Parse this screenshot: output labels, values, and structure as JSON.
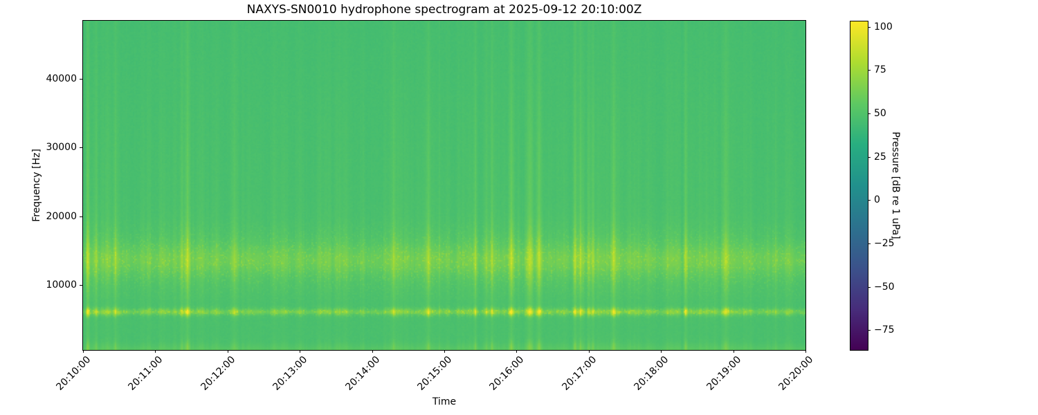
{
  "window": {
    "background": "#ffffff"
  },
  "chart_data": {
    "type": "heatmap",
    "subtype": "spectrogram",
    "title": "NAXYS-SN0010 hydrophone spectrogram at 2025-09-12 20:10:00Z",
    "xlabel": "Time",
    "ylabel": "Frequency [Hz]",
    "x_tick_labels": [
      "20:10:00",
      "20:11:00",
      "20:12:00",
      "20:13:00",
      "20:14:00",
      "20:15:00",
      "20:16:00",
      "20:17:00",
      "20:18:00",
      "20:19:00",
      "20:20:00"
    ],
    "x_tick_rotation_deg": 45,
    "time_span_seconds": 600,
    "y_ticks_hz": [
      10000,
      20000,
      30000,
      40000
    ],
    "y_range_hz": [
      500,
      48500
    ],
    "grid": false,
    "legend": "none",
    "colormap": "viridis",
    "colormap_stops": [
      "#440154",
      "#472d7b",
      "#3b528b",
      "#2c728e",
      "#21918c",
      "#28ae80",
      "#5ec962",
      "#addc30",
      "#fde725"
    ],
    "colorbar": {
      "label": "Pressure [dB re 1 uPa]",
      "position": "right",
      "tick_values": [
        100,
        75,
        50,
        25,
        0,
        -25,
        -50,
        -75
      ],
      "tick_labels": [
        "100",
        "75",
        "50",
        "25",
        "0",
        "−25",
        "−50",
        "−75"
      ],
      "value_range_db": [
        -86,
        103
      ]
    },
    "content_model": {
      "description": "Mostly uniform mid-green background (~47 dB) with faint broadband vertical transient stripes; a mottled elevated band at 11-16.5 kHz; a bright intermittent tonal line near 6 kHz reaching ~100 dB; a smooth slightly brighter low-frequency band below ~1.7 kHz.",
      "background_level_db": 47,
      "features": [
        {
          "name": "low-frequency-band",
          "freq_hz": [
            500,
            1700
          ],
          "peak_level_db": 56,
          "texture": "smooth"
        },
        {
          "name": "tonal-line",
          "freq_hz": [
            5600,
            6500
          ],
          "base_level_db": 60,
          "event_peak_db": 100,
          "texture": "intermittent bright dashes"
        },
        {
          "name": "mid-frequency-band",
          "freq_hz": [
            11000,
            16500
          ],
          "base_level_db": 59,
          "event_peak_db": 85,
          "texture": "mottled"
        },
        {
          "name": "broadband-transients",
          "freq_hz": [
            500,
            48500
          ],
          "boost_db": [
            2,
            17
          ],
          "texture": "narrow vertical stripes"
        }
      ],
      "render_seed": 20250912
    }
  }
}
